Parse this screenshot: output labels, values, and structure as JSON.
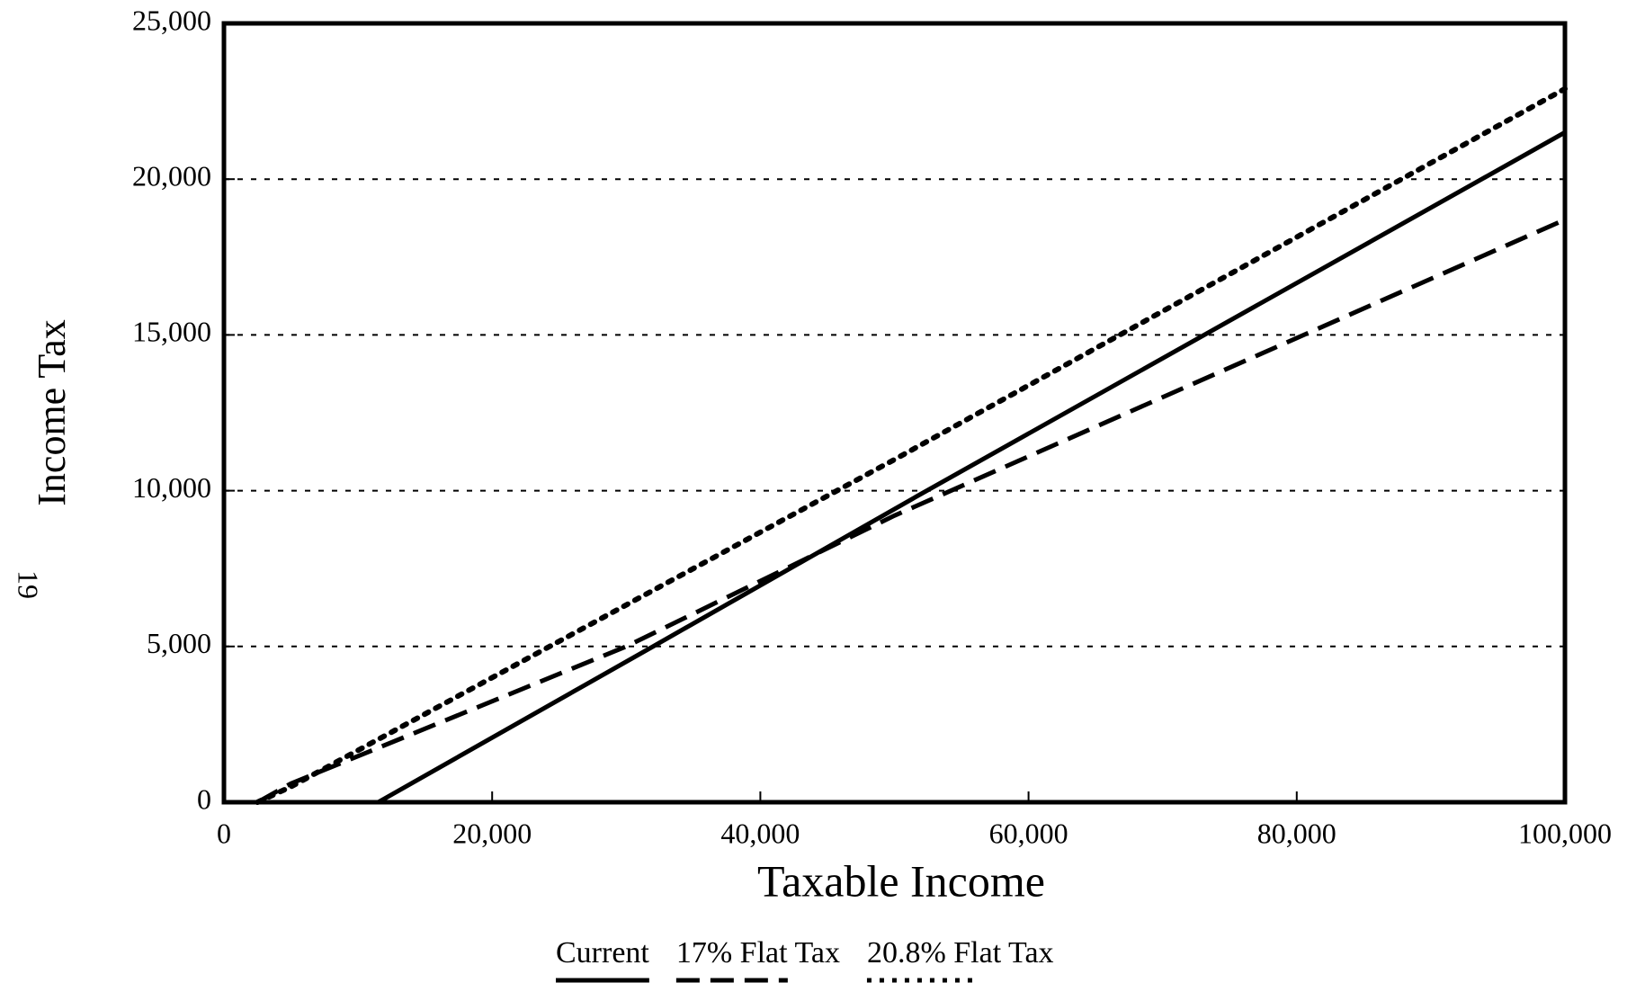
{
  "chart_data": {
    "type": "line",
    "xlabel": "Taxable Income",
    "ylabel": "Income Tax",
    "page_number": "19",
    "xlim": [
      0,
      100000
    ],
    "ylim": [
      0,
      25000
    ],
    "xticks": [
      0,
      {
        "value": 20000,
        "label": "20,000"
      },
      {
        "value": 40000,
        "label": "40,000"
      },
      {
        "value": 60000,
        "label": "60,000"
      },
      {
        "value": 80000,
        "label": "80,000"
      },
      {
        "value": 100000,
        "label": "100,000"
      }
    ],
    "yticks": [
      0,
      {
        "value": 5000,
        "label": "5,000"
      },
      {
        "value": 10000,
        "label": "10,000"
      },
      {
        "value": 15000,
        "label": "15,000"
      },
      {
        "value": 20000,
        "label": "20,000"
      },
      {
        "value": 25000,
        "label": "25,000"
      }
    ],
    "grid": "y-dotted",
    "series": [
      {
        "name": "Current",
        "color": "#000000",
        "dash": "solid",
        "x": [
          0,
          11500,
          32000,
          52000,
          100000
        ],
        "values": [
          0,
          0,
          5000,
          9900,
          21500
        ]
      },
      {
        "name": "17% Flat Tax",
        "color": "#000000",
        "dash": "dashed",
        "x": [
          2500,
          5000,
          30000,
          50000,
          100000
        ],
        "values": [
          0,
          600,
          5000,
          9200,
          18700
        ]
      },
      {
        "name": "20.8% Flat Tax",
        "color": "#000000",
        "dash": "dotted",
        "x": [
          2500,
          5000,
          50000,
          100000
        ],
        "values": [
          0,
          500,
          11000,
          22900
        ]
      }
    ]
  }
}
